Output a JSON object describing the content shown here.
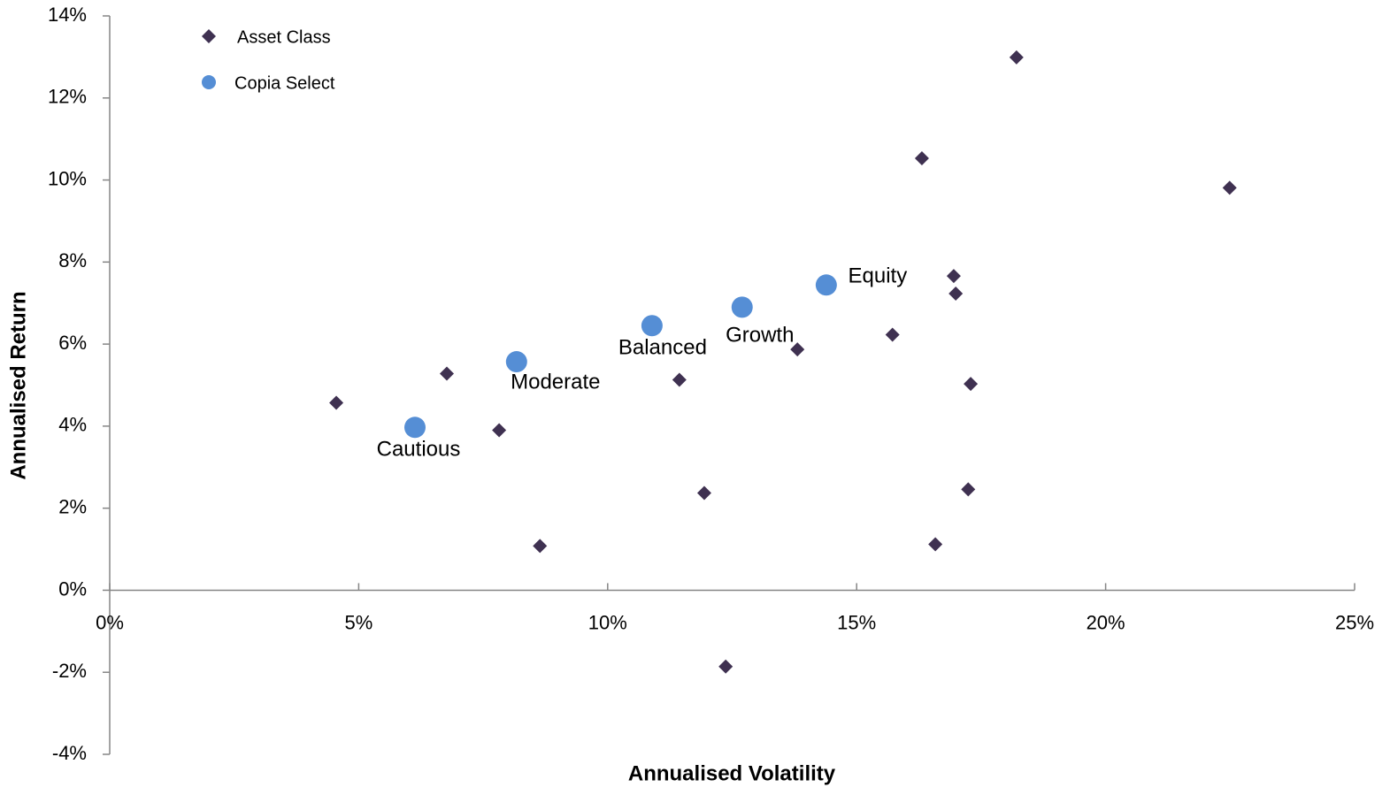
{
  "chart_data": {
    "type": "scatter",
    "x_label": "Annualised Volatility",
    "y_label": "Annualised Return",
    "xlim": [
      0,
      25
    ],
    "ylim": [
      -4,
      14
    ],
    "xticks": [
      {
        "value": 0,
        "label": "0%"
      },
      {
        "value": 5,
        "label": "5%"
      },
      {
        "value": 10,
        "label": "10%"
      },
      {
        "value": 15,
        "label": "15%"
      },
      {
        "value": 20,
        "label": "20%"
      },
      {
        "value": 25,
        "label": "25%"
      }
    ],
    "yticks": [
      {
        "value": -4,
        "label": "-4%"
      },
      {
        "value": -2,
        "label": "-2%"
      },
      {
        "value": 0,
        "label": "0%"
      },
      {
        "value": 2,
        "label": "2%"
      },
      {
        "value": 4,
        "label": "4%"
      },
      {
        "value": 6,
        "label": "6%"
      },
      {
        "value": 8,
        "label": "8%"
      },
      {
        "value": 10,
        "label": "10%"
      },
      {
        "value": 12,
        "label": "12%"
      },
      {
        "value": 14,
        "label": "14%"
      }
    ],
    "grid": false,
    "legend": "top-left",
    "series": [
      {
        "name": "Asset Class",
        "color": "#3f3151",
        "marker": "diamond",
        "x": [
          4.55,
          6.77,
          7.82,
          8.64,
          11.44,
          11.94,
          12.37,
          13.81,
          15.72,
          16.31,
          16.58,
          16.95,
          16.99,
          17.24,
          17.29,
          18.21,
          22.49
        ],
        "y": [
          4.57,
          5.28,
          3.9,
          1.08,
          5.13,
          2.37,
          -1.86,
          5.87,
          6.23,
          10.53,
          1.12,
          7.66,
          7.23,
          2.46,
          5.03,
          12.99,
          9.81
        ]
      },
      {
        "name": "Copia Select",
        "color": "#558ed5",
        "marker": "circle",
        "x": [
          6.13,
          8.17,
          10.89,
          12.7,
          14.39
        ],
        "y": [
          3.97,
          5.57,
          6.45,
          6.9,
          7.44
        ],
        "labels": [
          "Cautious",
          "Moderate",
          "Balanced",
          "Growth",
          "Equity"
        ]
      }
    ]
  }
}
